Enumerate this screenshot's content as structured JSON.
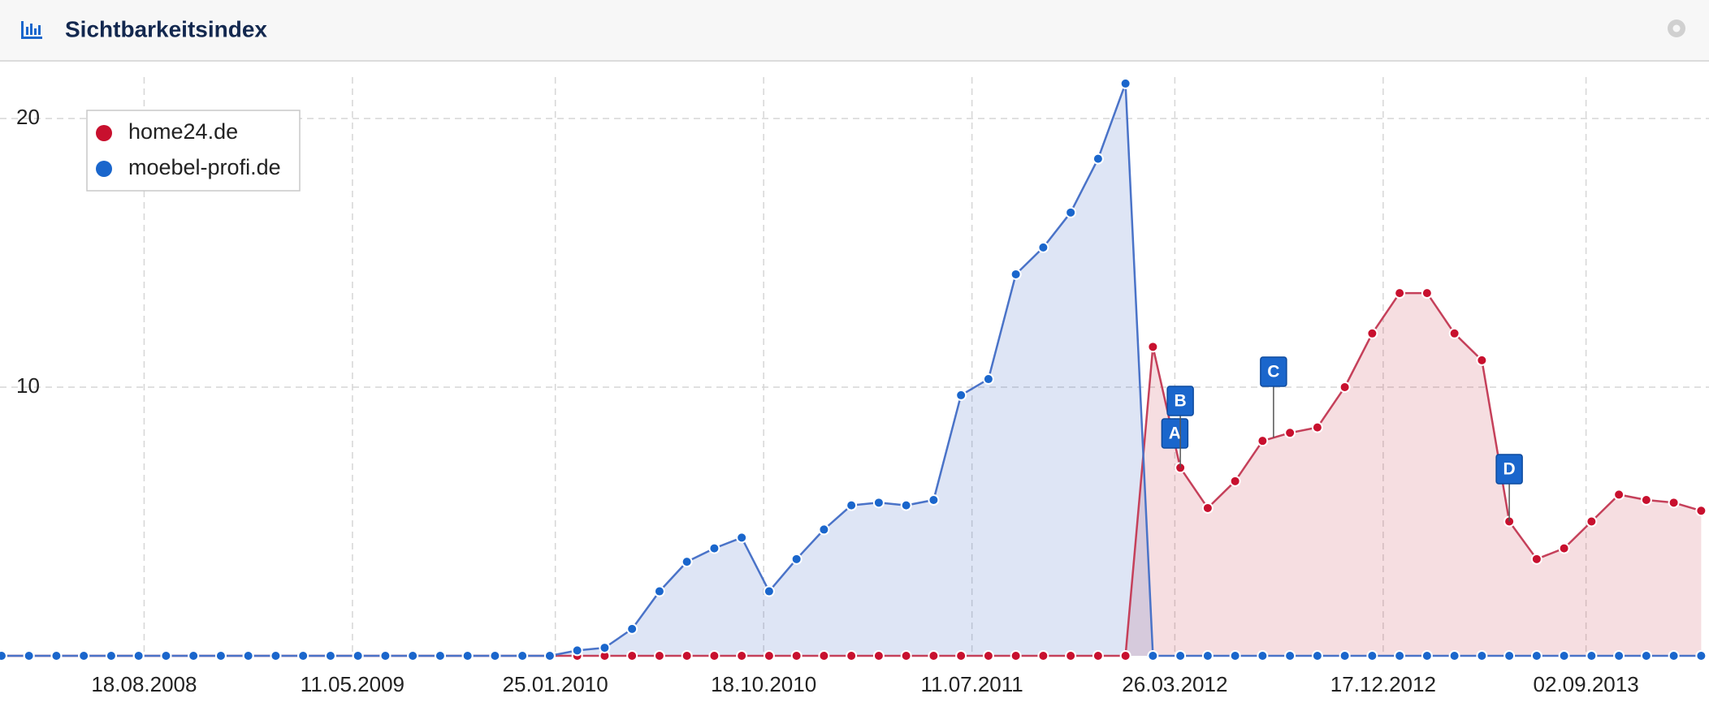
{
  "chart_data": {
    "type": "area",
    "title": "Sichtbarkeitsindex",
    "x": [
      "18.02.2008",
      "24.03.2008",
      "28.04.2008",
      "02.06.2008",
      "07.07.2008",
      "11.08.2008",
      "15.09.2008",
      "20.10.2008",
      "24.11.2008",
      "29.12.2008",
      "02.02.2009",
      "09.03.2009",
      "13.04.2009",
      "18.05.2009",
      "22.06.2009",
      "27.07.2009",
      "31.08.2009",
      "05.10.2009",
      "09.11.2009",
      "14.12.2009",
      "18.01.2010",
      "22.02.2010",
      "29.03.2010",
      "03.05.2010",
      "07.06.2010",
      "12.07.2010",
      "16.08.2010",
      "20.09.2010",
      "25.10.2010",
      "29.11.2010",
      "03.01.2011",
      "07.02.2011",
      "14.03.2011",
      "18.04.2011",
      "23.05.2011",
      "27.06.2011",
      "01.08.2011",
      "05.09.2011",
      "10.10.2011",
      "14.11.2011",
      "19.12.2011",
      "23.01.2012",
      "27.02.2012",
      "02.04.2012",
      "07.05.2012",
      "11.06.2012",
      "16.07.2012",
      "20.08.2012",
      "24.09.2012",
      "29.10.2012",
      "03.12.2012",
      "07.01.2013",
      "11.02.2013",
      "18.03.2013",
      "22.04.2013",
      "27.05.2013",
      "01.07.2013",
      "05.08.2013",
      "09.09.2013",
      "14.10.2013",
      "18.11.2013",
      "23.12.2013",
      "27.01.2014"
    ],
    "series": [
      {
        "name": "home24.de",
        "color": "#c8102e",
        "values": [
          0,
          0,
          0,
          0,
          0,
          0,
          0,
          0,
          0,
          0,
          0,
          0,
          0,
          0,
          0,
          0,
          0,
          0,
          0,
          0,
          0,
          0,
          0,
          0,
          0,
          0,
          0,
          0,
          0,
          0,
          0,
          0,
          0,
          0,
          0,
          0,
          0,
          0,
          0,
          0,
          0,
          0,
          11.5,
          7,
          5.5,
          6.5,
          8,
          8.3,
          8.5,
          10,
          12,
          13.5,
          13.5,
          12,
          11,
          5,
          3.6,
          4,
          5,
          6,
          5.8,
          5.7,
          5.4
        ]
      },
      {
        "name": "moebel-profi.de",
        "color": "#1a66cc",
        "values": [
          0,
          0,
          0,
          0,
          0,
          0,
          0,
          0,
          0,
          0,
          0,
          0,
          0,
          0,
          0,
          0,
          0,
          0,
          0,
          0,
          0,
          0.2,
          0.3,
          1,
          2.4,
          3.5,
          4,
          4.4,
          2.4,
          3.6,
          4.7,
          5.6,
          5.7,
          5.6,
          5.8,
          9.7,
          10.3,
          14.2,
          15.2,
          16.5,
          18.5,
          21.3,
          0,
          0,
          0,
          0,
          0,
          0,
          0,
          0,
          0,
          0,
          0,
          0,
          0,
          0,
          0,
          0,
          0,
          0,
          0,
          0,
          0
        ]
      }
    ],
    "xlim": [
      "16.02.2008",
      "06.02.2014"
    ],
    "xticks": [
      "18.08.2008",
      "11.05.2009",
      "25.01.2010",
      "18.10.2010",
      "11.07.2011",
      "26.03.2012",
      "17.12.2012",
      "02.09.2013"
    ],
    "ylim": [
      0,
      21.6
    ],
    "yticks": [
      10,
      20
    ],
    "grid": true,
    "legend": "top-left",
    "annotations": [
      {
        "label": "A",
        "x": "26.03.2012"
      },
      {
        "label": "B",
        "x": "02.04.2012"
      },
      {
        "label": "C",
        "x": "30.07.2012"
      },
      {
        "label": "D",
        "x": "27.05.2013"
      }
    ]
  }
}
